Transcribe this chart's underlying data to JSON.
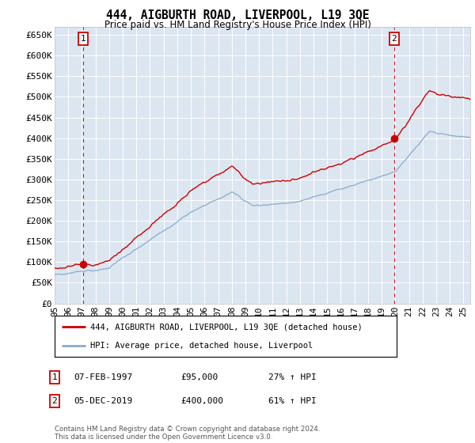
{
  "title": "444, AIGBURTH ROAD, LIVERPOOL, L19 3QE",
  "subtitle": "Price paid vs. HM Land Registry's House Price Index (HPI)",
  "plot_bg_color": "#dce6f1",
  "ylabel_ticks": [
    "£0",
    "£50K",
    "£100K",
    "£150K",
    "£200K",
    "£250K",
    "£300K",
    "£350K",
    "£400K",
    "£450K",
    "£500K",
    "£550K",
    "£600K",
    "£650K"
  ],
  "ytick_values": [
    0,
    50000,
    100000,
    150000,
    200000,
    250000,
    300000,
    350000,
    400000,
    450000,
    500000,
    550000,
    600000,
    650000
  ],
  "ylim": [
    0,
    670000
  ],
  "xlim_start": 1995.0,
  "xlim_end": 2025.5,
  "year_ticks": [
    1995,
    1996,
    1997,
    1998,
    1999,
    2000,
    2001,
    2002,
    2003,
    2004,
    2005,
    2006,
    2007,
    2008,
    2009,
    2010,
    2011,
    2012,
    2013,
    2014,
    2015,
    2016,
    2017,
    2018,
    2019,
    2020,
    2021,
    2022,
    2023,
    2024,
    2025
  ],
  "year_tick_labels": [
    "95",
    "96",
    "97",
    "98",
    "99",
    "00",
    "01",
    "02",
    "03",
    "04",
    "05",
    "06",
    "07",
    "08",
    "09",
    "10",
    "11",
    "12",
    "13",
    "14",
    "15",
    "16",
    "17",
    "18",
    "19",
    "20",
    "21",
    "22",
    "23",
    "24",
    "25"
  ],
  "sale1_x": 1997.1,
  "sale1_y": 95000,
  "sale2_x": 2019.92,
  "sale2_y": 400000,
  "sale1_label": "1",
  "sale2_label": "2",
  "property_color": "#cc0000",
  "hpi_color": "#88aacc",
  "dashed_line_color": "#cc0000",
  "legend_property": "444, AIGBURTH ROAD, LIVERPOOL, L19 3QE (detached house)",
  "legend_hpi": "HPI: Average price, detached house, Liverpool",
  "ann1_date": "07-FEB-1997",
  "ann1_price": "£95,000",
  "ann1_hpi": "27% ↑ HPI",
  "ann2_date": "05-DEC-2019",
  "ann2_price": "£400,000",
  "ann2_hpi": "61% ↑ HPI",
  "footer": "Contains HM Land Registry data © Crown copyright and database right 2024.\nThis data is licensed under the Open Government Licence v3.0."
}
